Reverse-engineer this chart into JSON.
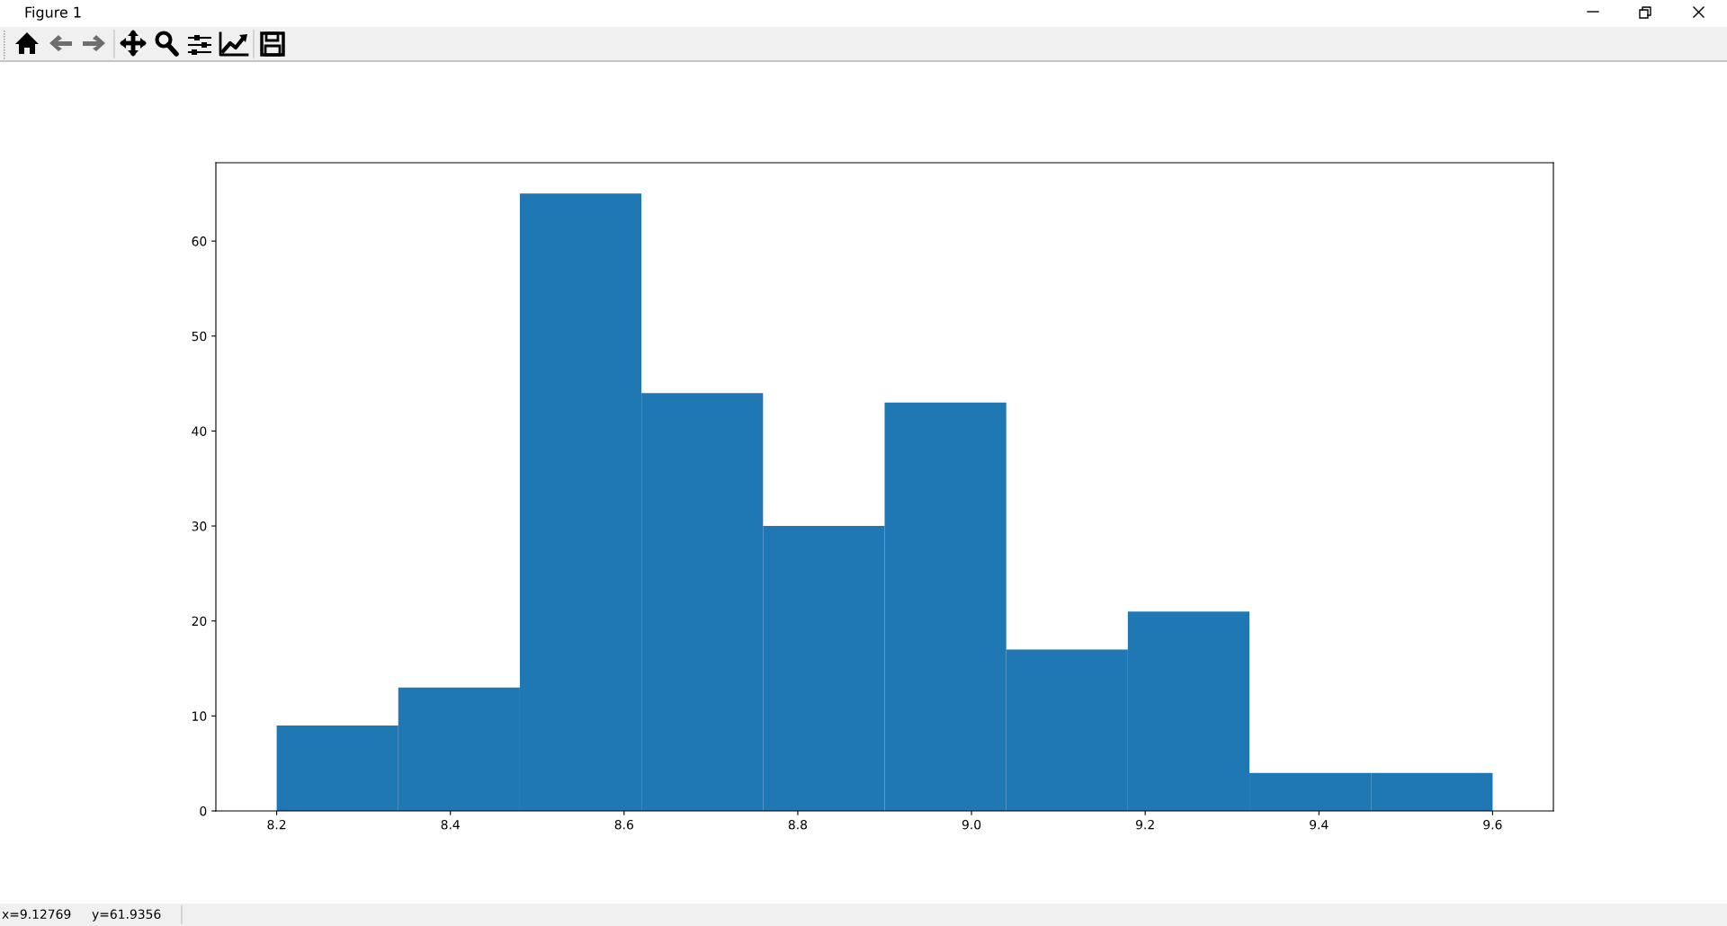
{
  "chart_data": {
    "type": "histogram",
    "bins": [
      8.2,
      8.34,
      8.48,
      8.62,
      8.76,
      8.9,
      9.04,
      9.18,
      9.32,
      9.46,
      9.6
    ],
    "values": [
      9,
      13,
      65,
      44,
      30,
      43,
      17,
      21,
      4,
      4
    ],
    "color": "#1f77b4",
    "xlim": [
      8.13,
      9.67
    ],
    "ylim": [
      0,
      68.25
    ],
    "xticks": [
      8.2,
      8.4,
      8.6,
      8.8,
      {
        "value": 9,
        "label": "9.0"
      },
      9.2,
      9.4,
      9.6
    ],
    "yticks": [
      0,
      10,
      20,
      30,
      40,
      50,
      60
    ],
    "annotations": [
      "Figure 1",
      "x=9.12769",
      "y=61.9356"
    ]
  }
}
